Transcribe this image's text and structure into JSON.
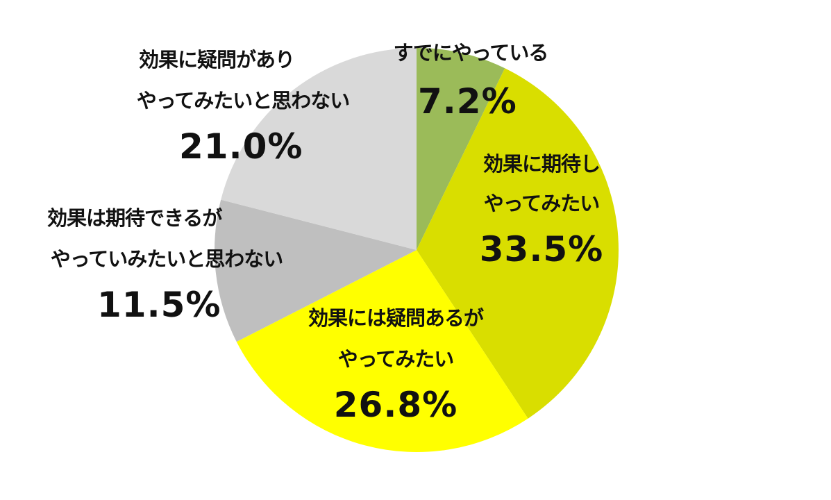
{
  "chart_data": {
    "type": "pie",
    "start_angle_deg": 0,
    "direction": "clockwise",
    "slices": [
      {
        "label_lines": [
          "すでにやっている"
        ],
        "value": 7.2,
        "value_label": "7.2%",
        "color": "#9BBB59"
      },
      {
        "label_lines": [
          "効果に期待し",
          "やってみたい"
        ],
        "value": 33.5,
        "value_label": "33.5%",
        "color": "#D9DE00"
      },
      {
        "label_lines": [
          "効果には疑問あるが",
          "やってみたい"
        ],
        "value": 26.8,
        "value_label": "26.8%",
        "color": "#FFFF00"
      },
      {
        "label_lines": [
          "効果は期待できるが",
          "やっていみたいと思わない"
        ],
        "value": 11.5,
        "value_label": "11.5%",
        "color": "#BFBFBF"
      },
      {
        "label_lines": [
          "効果に疑問があり",
          "やってみたいと思わない"
        ],
        "value": 21.0,
        "value_label": "21.0%",
        "color": "#D9D9D9"
      }
    ]
  }
}
